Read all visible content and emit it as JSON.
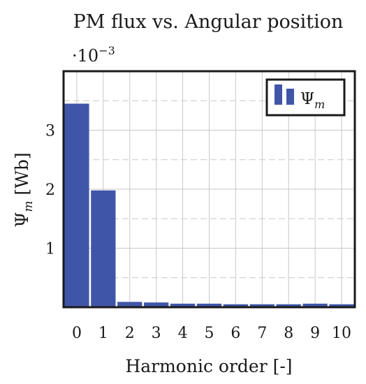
{
  "chart_data": {
    "type": "bar",
    "title": "PM flux vs. Angular position",
    "xlabel": "Harmonic order [-]",
    "ylabel_main": "Ψ",
    "ylabel_sub": "m",
    "ylabel_unit": "[Wb]",
    "y_scale_prefix": "·10",
    "y_scale_exponent": "−3",
    "categories": [
      "0",
      "1",
      "2",
      "3",
      "4",
      "5",
      "6",
      "7",
      "8",
      "9",
      "10"
    ],
    "y_tick_labels": [
      "1",
      "2",
      "3"
    ],
    "series": [
      {
        "legend_main": "Ψ",
        "legend_sub": "m",
        "color": "#3f56a8",
        "values": [
          3.45,
          1.98,
          0.09,
          0.08,
          0.06,
          0.06,
          0.05,
          0.05,
          0.05,
          0.06,
          0.05
        ]
      }
    ],
    "ylim": [
      0,
      4.0
    ],
    "xlim": [
      -0.5,
      10.5
    ],
    "grid": true,
    "legend_position": "top-right"
  }
}
